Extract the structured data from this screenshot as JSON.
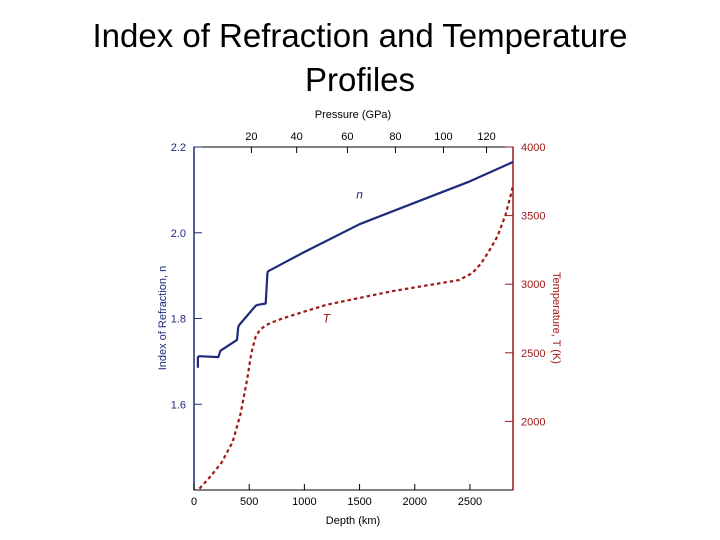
{
  "slide": {
    "title_line1": "Index of Refraction and Temperature",
    "title_line2": "Profiles"
  },
  "chart_data": {
    "type": "line",
    "x": {
      "label": "Depth (km)",
      "ticks": [
        0,
        500,
        1000,
        1500,
        2000,
        2500
      ],
      "tick_labels": [
        "0",
        "500",
        "1000",
        "1500",
        "2000",
        "2500"
      ],
      "range": [
        0,
        2890
      ]
    },
    "x2": {
      "label": "Pressure (GPa)",
      "ticks": [
        20,
        40,
        60,
        80,
        100,
        120
      ],
      "tick_labels": [
        "20",
        "40",
        "60",
        "80",
        "100",
        "120"
      ],
      "tick_depths": [
        520,
        930,
        1390,
        1825,
        2260,
        2650
      ]
    },
    "y_left": {
      "label": "Index of Refraction, n",
      "ticks": [
        1.6,
        1.8,
        2.0,
        2.2
      ],
      "tick_labels": [
        "1.6",
        "1.8",
        "2.0",
        "2.2"
      ],
      "range": [
        1.4,
        2.2
      ],
      "color": "#1f2a7a"
    },
    "y_right": {
      "label": "Temperature, T (K)",
      "ticks": [
        2000,
        2500,
        3000,
        3500,
        4000
      ],
      "tick_labels": [
        "2000",
        "2500",
        "3000",
        "3500",
        "4000"
      ],
      "range": [
        1500,
        4000
      ],
      "color": "#a01818"
    },
    "series": [
      {
        "name": "n",
        "axis": "left",
        "style": "solid",
        "color": "#1f2a7a",
        "x": [
          35,
          35,
          50,
          220,
          240,
          390,
          400,
          410,
          560,
          580,
          650,
          665,
          670,
          1000,
          1500,
          2000,
          2500,
          2890
        ],
        "y": [
          1.685,
          1.71,
          1.712,
          1.71,
          1.725,
          1.75,
          1.78,
          1.785,
          1.83,
          1.832,
          1.835,
          1.905,
          1.91,
          1.955,
          2.02,
          2.07,
          2.12,
          2.165
        ]
      },
      {
        "name": "T",
        "axis": "right",
        "style": "dashed",
        "color": "#a01818",
        "x": [
          50,
          150,
          250,
          350,
          420,
          480,
          520,
          560,
          600,
          650,
          700,
          800,
          1000,
          1200,
          1500,
          1800,
          2100,
          2400,
          2520,
          2600,
          2680,
          2750,
          2820,
          2870,
          2890
        ],
        "y": [
          1510,
          1600,
          1700,
          1850,
          2050,
          2300,
          2500,
          2620,
          2670,
          2700,
          2720,
          2750,
          2800,
          2850,
          2900,
          2950,
          2990,
          3030,
          3080,
          3150,
          3250,
          3350,
          3500,
          3650,
          3720
        ]
      }
    ],
    "annotations": [
      {
        "text": "n",
        "x": 1500,
        "y": 2.08,
        "axis": "left",
        "color": "#1f2a7a"
      },
      {
        "text": "T",
        "x": 1200,
        "y": 2720,
        "axis": "right",
        "color": "#a01818"
      }
    ],
    "grid": false,
    "legend": "none"
  }
}
